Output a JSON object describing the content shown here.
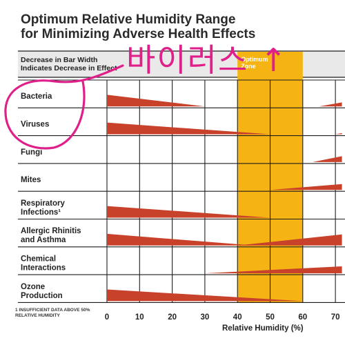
{
  "title_line1": "Optimum Relative Humidity Range",
  "title_line2": "for Minimizing Adverse Health Effects",
  "header_label_line1": "Decrease in Bar Width",
  "header_label_line2": "Indicates Decrease in Effect",
  "optimum_zone_label_line1": "Optimum",
  "optimum_zone_label_line2": "Zone",
  "handwriting_text": "바이러스 ↑",
  "footnote": "1 Insufficient data above 50% relative humidity",
  "chart_data": {
    "type": "area",
    "title": "Optimum Relative Humidity Range for Minimizing Adverse Health Effects",
    "xlabel": "Relative Humidity (%)",
    "x_ticks": [
      0,
      10,
      20,
      30,
      40,
      50,
      60,
      70
    ],
    "xlim": [
      0,
      72
    ],
    "optimum_zone": [
      40,
      60
    ],
    "band_scale_note": "Decrease in Bar Width Indicates Decrease in Effect",
    "series": [
      {
        "name": "Bacteria",
        "label_lines": [
          "Bacteria"
        ],
        "low_end": {
          "from": 0,
          "to": 30,
          "start_width": 1.0
        },
        "high_end": {
          "from": 65,
          "to": 72,
          "end_width": 0.35
        }
      },
      {
        "name": "Viruses",
        "label_lines": [
          "Viruses"
        ],
        "low_end": {
          "from": 0,
          "to": 50,
          "start_width": 1.0
        },
        "high_end": {
          "from": 70,
          "to": 72,
          "end_width": 0.1
        }
      },
      {
        "name": "Fungi",
        "label_lines": [
          "Fungi"
        ],
        "low_end": null,
        "high_end": {
          "from": 63,
          "to": 72,
          "end_width": 0.5
        }
      },
      {
        "name": "Mites",
        "label_lines": [
          "Mites"
        ],
        "low_end": null,
        "high_end": {
          "from": 50,
          "to": 72,
          "end_width": 0.5
        }
      },
      {
        "name": "Respiratory Infections",
        "label_lines": [
          "Respiratory",
          "Infections¹"
        ],
        "low_end": {
          "from": 0,
          "to": 50,
          "start_width": 1.0
        },
        "high_end": null
      },
      {
        "name": "Allergic Rhinitis and Asthma",
        "label_lines": [
          "Allergic Rhinitis",
          "and Asthma"
        ],
        "low_end": {
          "from": 0,
          "to": 45,
          "start_width": 1.0
        },
        "high_end": {
          "from": 40,
          "to": 72,
          "end_width": 0.95
        }
      },
      {
        "name": "Chemical Interactions",
        "label_lines": [
          "Chemical",
          "Interactions"
        ],
        "low_end": null,
        "high_end": {
          "from": 30,
          "to": 72,
          "end_width": 0.6
        }
      },
      {
        "name": "Ozone Production",
        "label_lines": [
          "Ozone",
          "Production"
        ],
        "low_end": {
          "from": 0,
          "to": 60,
          "start_width": 1.0
        },
        "high_end": null
      }
    ]
  },
  "colors": {
    "band": "#c8412a",
    "optimum_zone": "#f5b414",
    "header_bg": "#e9e9e9",
    "grid": "#1c1c1c",
    "handwriting": "#e0208a"
  }
}
